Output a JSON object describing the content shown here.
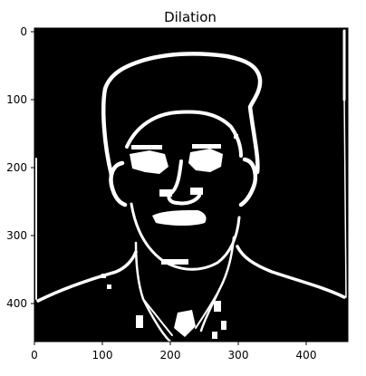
{
  "figure": {
    "title": "Dilation"
  },
  "axes": {
    "x_ticks": [
      "0",
      "100",
      "200",
      "300",
      "400"
    ],
    "y_ticks": [
      "0",
      "100",
      "200",
      "300",
      "400"
    ]
  },
  "image": {
    "description": "binary dilation edge map of a portrait",
    "background_color": "#000000",
    "foreground_color": "#ffffff"
  }
}
